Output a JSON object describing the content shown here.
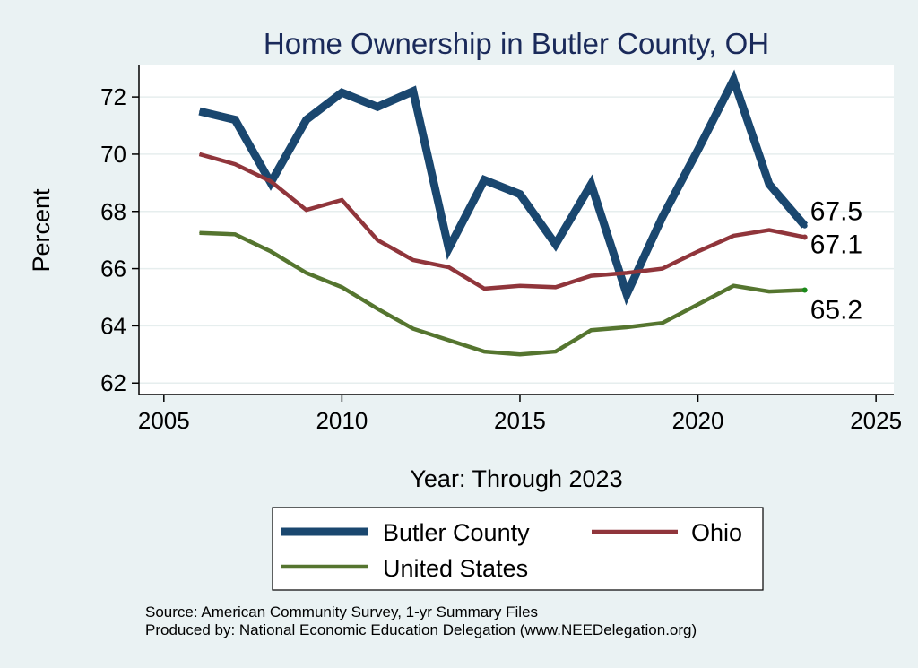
{
  "chart_data": {
    "type": "line",
    "title": "Home Ownership in Butler County, OH",
    "xlabel": "Year: Through 2023",
    "ylabel": "Percent",
    "xlim": [
      2004.3,
      2025.5
    ],
    "ylim": [
      61.6,
      73.1
    ],
    "x_ticks": [
      2005,
      2010,
      2015,
      2020,
      2025
    ],
    "y_ticks": [
      62,
      64,
      66,
      68,
      70,
      72
    ],
    "grid": true,
    "legend_position": "bottom",
    "x": [
      2006,
      2007,
      2008,
      2009,
      2010,
      2011,
      2012,
      2013,
      2014,
      2015,
      2016,
      2017,
      2018,
      2019,
      2020,
      2021,
      2022,
      2023
    ],
    "series": [
      {
        "name": "Butler County",
        "color": "#1a476f",
        "values": [
          71.5,
          71.2,
          69.0,
          71.2,
          72.15,
          71.65,
          72.2,
          66.7,
          69.1,
          68.6,
          66.85,
          68.95,
          65.1,
          67.8,
          70.15,
          72.6,
          68.95,
          67.5
        ],
        "end_label": "67.5"
      },
      {
        "name": "Ohio",
        "color": "#90353b",
        "values": [
          70.0,
          69.65,
          69.05,
          68.05,
          68.4,
          67.0,
          66.3,
          66.05,
          65.3,
          65.4,
          65.35,
          65.75,
          65.85,
          66.0,
          66.6,
          67.15,
          67.35,
          67.1
        ],
        "end_label": "67.1"
      },
      {
        "name": "United States",
        "color": "#55752f",
        "values": [
          67.25,
          67.2,
          66.6,
          65.85,
          65.35,
          64.6,
          63.9,
          63.5,
          63.1,
          63.0,
          63.1,
          63.85,
          63.95,
          64.1,
          64.75,
          65.4,
          65.2,
          65.25
        ],
        "end_label": "65.2"
      }
    ],
    "notes": [
      "Source: American Community Survey, 1-yr Summary Files",
      "Produced by: National Economic Education Delegation (www.NEEDelegation.org)"
    ]
  }
}
